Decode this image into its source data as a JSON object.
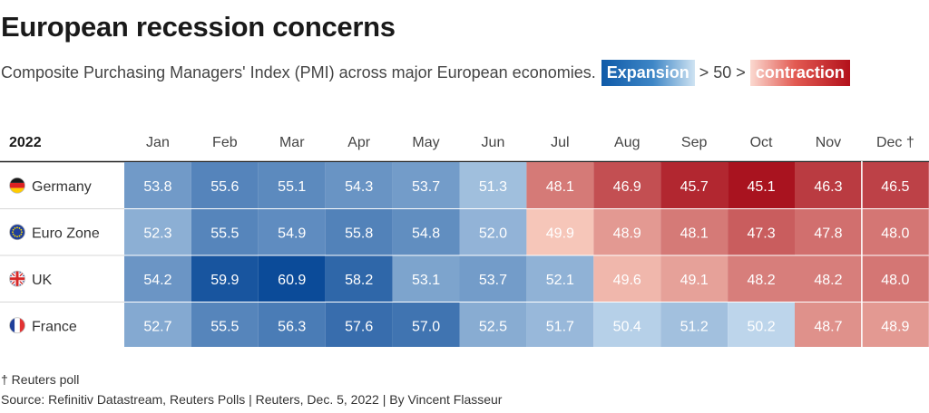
{
  "title": "European recession concerns",
  "subtitle": {
    "text": "Composite Purchasing Managers' Index (PMI) across major European economies.",
    "legend_expansion": "Expansion",
    "legend_middle": "> 50 >",
    "legend_contraction": "contraction"
  },
  "chart_data": {
    "type": "heatmap",
    "corner_label": "2022",
    "columns": [
      "Jan",
      "Feb",
      "Mar",
      "Apr",
      "May",
      "Jun",
      "Jul",
      "Aug",
      "Sep",
      "Oct",
      "Nov",
      "Dec †"
    ],
    "rows": [
      {
        "name": "Germany",
        "flag": "germany-flag-icon",
        "values": [
          53.8,
          55.6,
          55.1,
          54.3,
          53.7,
          51.3,
          48.1,
          46.9,
          45.7,
          45.1,
          46.3,
          46.5
        ]
      },
      {
        "name": "Euro Zone",
        "flag": "eu-flag-icon",
        "values": [
          52.3,
          55.5,
          54.9,
          55.8,
          54.8,
          52.0,
          49.9,
          48.9,
          48.1,
          47.3,
          47.8,
          48.0
        ]
      },
      {
        "name": "UK",
        "flag": "uk-flag-icon",
        "values": [
          54.2,
          59.9,
          60.9,
          58.2,
          53.1,
          53.7,
          52.1,
          49.6,
          49.1,
          48.2,
          48.2,
          48.0
        ]
      },
      {
        "name": "France",
        "flag": "france-flag-icon",
        "values": [
          52.7,
          55.5,
          56.3,
          57.6,
          57.0,
          52.5,
          51.7,
          50.4,
          51.2,
          50.2,
          48.7,
          48.9
        ]
      }
    ],
    "threshold": 50,
    "color_scale": {
      "expansion_max": "#0a4a98",
      "expansion_min": "#c6dcef",
      "contraction_min": "#f9cdbf",
      "contraction_max": "#a8101c"
    }
  },
  "footnote": "† Reuters poll",
  "source": "Source: Refinitiv Datastream, Reuters Polls | Reuters, Dec. 5, 2022 | By Vincent Flasseur"
}
